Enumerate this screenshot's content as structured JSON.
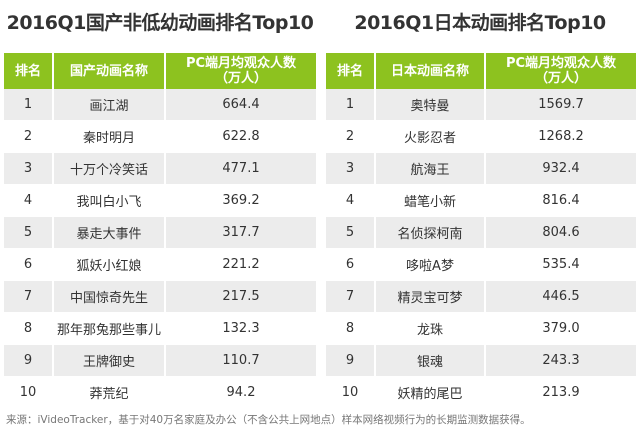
{
  "left": {
    "title": "2016Q1国产非低幼动画排名Top10",
    "headers": [
      "排名",
      "国产动画名称",
      "PC端月均观众人数",
      "（万人）"
    ],
    "rows": [
      [
        "1",
        "画江湖",
        "664.4"
      ],
      [
        "2",
        "秦时明月",
        "622.8"
      ],
      [
        "3",
        "十万个冷笑话",
        "477.1"
      ],
      [
        "4",
        "我叫白小飞",
        "369.2"
      ],
      [
        "5",
        "暴走大事件",
        "317.7"
      ],
      [
        "6",
        "狐妖小红娘",
        "221.2"
      ],
      [
        "7",
        "中国惊奇先生",
        "217.5"
      ],
      [
        "8",
        "那年那兔那些事儿",
        "132.3"
      ],
      [
        "9",
        "王牌御史",
        "110.7"
      ],
      [
        "10",
        "莽荒纪",
        "94.2"
      ]
    ]
  },
  "right": {
    "title": "2016Q1日本动画排名Top10",
    "headers": [
      "排名",
      "日本动画名称",
      "PC端月均观众人数",
      "（万人）"
    ],
    "rows": [
      [
        "1",
        "奥特曼",
        "1569.7"
      ],
      [
        "2",
        "火影忍者",
        "1268.2"
      ],
      [
        "3",
        "航海王",
        "932.4"
      ],
      [
        "4",
        "蜡笔小新",
        "816.4"
      ],
      [
        "5",
        "名侦探柯南",
        "804.6"
      ],
      [
        "6",
        "哆啦A梦",
        "535.4"
      ],
      [
        "7",
        "精灵宝可梦",
        "446.5"
      ],
      [
        "8",
        "龙珠",
        "379.0"
      ],
      [
        "9",
        "银魂",
        "243.3"
      ],
      [
        "10",
        "妖精的尾巴",
        "213.9"
      ]
    ]
  },
  "footer": "来源：iVideoTracker，基于对40万名家庭及办公（不含公共上网地点）样本网络视频行为的长期监测数据获得。",
  "colors": {
    "header": "#8dc21f",
    "stripe": "#ececec"
  }
}
